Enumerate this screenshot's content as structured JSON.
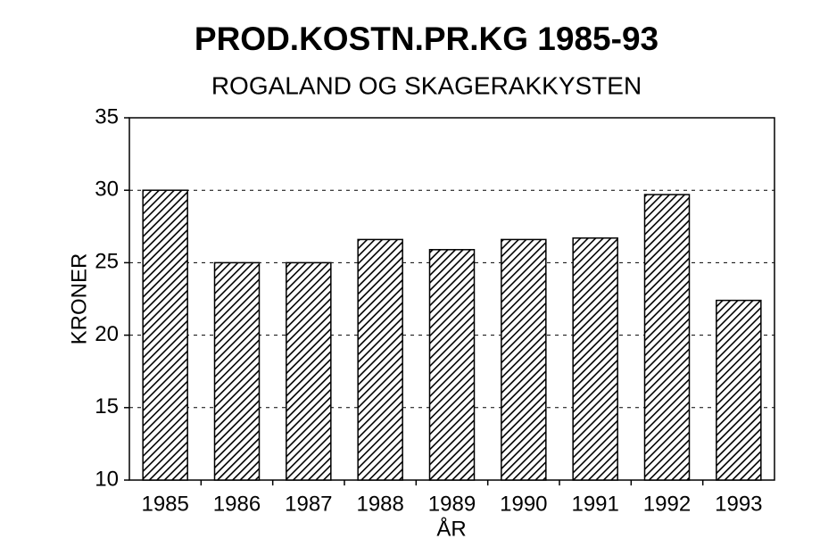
{
  "chart_data": {
    "type": "bar",
    "title": "PROD.KOSTN.PR.KG 1985-93",
    "subtitle": "ROGALAND OG SKAGERAKKYSTEN",
    "x_label": "ÅR",
    "y_label": "KRONER",
    "categories": [
      "1985",
      "1986",
      "1987",
      "1988",
      "1989",
      "1990",
      "1991",
      "1992",
      "1993"
    ],
    "values": [
      30.0,
      25.0,
      25.0,
      26.6,
      25.9,
      26.6,
      26.7,
      29.7,
      22.4
    ],
    "color": "#000000",
    "ylim": [
      10,
      35
    ],
    "yticks": [
      10,
      15,
      20,
      25,
      30,
      35
    ],
    "grid": true
  }
}
